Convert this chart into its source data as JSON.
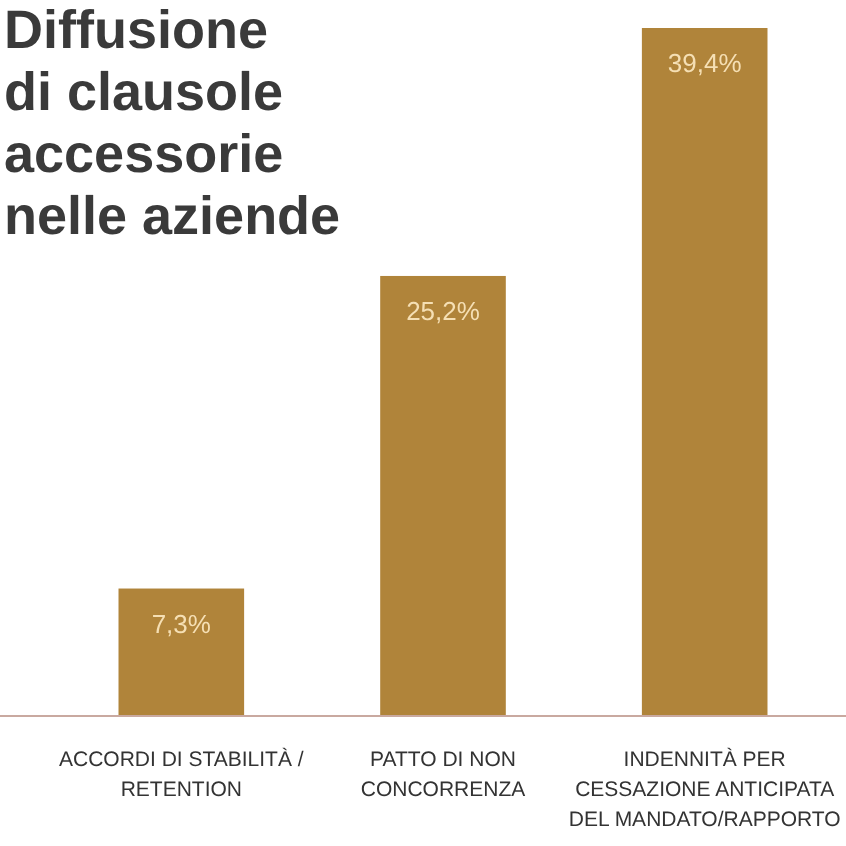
{
  "chart_data": {
    "type": "bar",
    "title": "Diffusione\ndi clausole\naccessorie\nnelle aziende",
    "categories": [
      "ACCORDI DI STABILITÀ /\nRETENTION",
      "PATTO DI NON\nCONCORRENZA",
      "INDENNITÀ PER\nCESSAZIONE ANTICIPATA\nDEL MANDATO/RAPPORTO"
    ],
    "values": [
      7.3,
      25.2,
      39.4
    ],
    "value_labels": [
      "7,3%",
      "25,2%",
      "39,4%"
    ],
    "color": "#b0843a"
  }
}
